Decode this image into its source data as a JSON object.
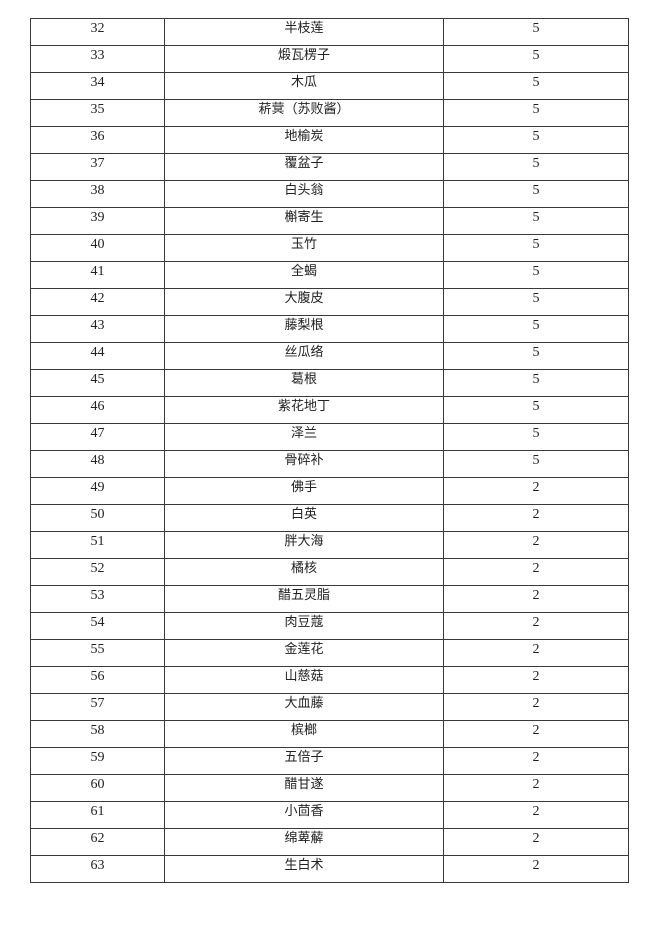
{
  "table": {
    "rows": [
      {
        "no": "32",
        "name": "半枝莲",
        "value": "5"
      },
      {
        "no": "33",
        "name": "煅瓦楞子",
        "value": "5"
      },
      {
        "no": "34",
        "name": "木瓜",
        "value": "5"
      },
      {
        "no": "35",
        "name": "菥蓂（苏败酱）",
        "value": "5"
      },
      {
        "no": "36",
        "name": "地榆炭",
        "value": "5"
      },
      {
        "no": "37",
        "name": "覆盆子",
        "value": "5"
      },
      {
        "no": "38",
        "name": "白头翁",
        "value": "5"
      },
      {
        "no": "39",
        "name": "槲寄生",
        "value": "5"
      },
      {
        "no": "40",
        "name": "玉竹",
        "value": "5"
      },
      {
        "no": "41",
        "name": "全蝎",
        "value": "5"
      },
      {
        "no": "42",
        "name": "大腹皮",
        "value": "5"
      },
      {
        "no": "43",
        "name": "藤梨根",
        "value": "5"
      },
      {
        "no": "44",
        "name": "丝瓜络",
        "value": "5"
      },
      {
        "no": "45",
        "name": "葛根",
        "value": "5"
      },
      {
        "no": "46",
        "name": "紫花地丁",
        "value": "5"
      },
      {
        "no": "47",
        "name": "泽兰",
        "value": "5"
      },
      {
        "no": "48",
        "name": "骨碎补",
        "value": "5"
      },
      {
        "no": "49",
        "name": "佛手",
        "value": "2"
      },
      {
        "no": "50",
        "name": "白英",
        "value": "2"
      },
      {
        "no": "51",
        "name": "胖大海",
        "value": "2"
      },
      {
        "no": "52",
        "name": "橘核",
        "value": "2"
      },
      {
        "no": "53",
        "name": "醋五灵脂",
        "value": "2"
      },
      {
        "no": "54",
        "name": "肉豆蔻",
        "value": "2"
      },
      {
        "no": "55",
        "name": "金莲花",
        "value": "2"
      },
      {
        "no": "56",
        "name": "山慈菇",
        "value": "2"
      },
      {
        "no": "57",
        "name": "大血藤",
        "value": "2"
      },
      {
        "no": "58",
        "name": "槟榔",
        "value": "2"
      },
      {
        "no": "59",
        "name": "五倍子",
        "value": "2"
      },
      {
        "no": "60",
        "name": "醋甘遂",
        "value": "2"
      },
      {
        "no": "61",
        "name": "小茴香",
        "value": "2"
      },
      {
        "no": "62",
        "name": "绵萆薢",
        "value": "2"
      },
      {
        "no": "63",
        "name": "生白术",
        "value": "2"
      }
    ]
  }
}
